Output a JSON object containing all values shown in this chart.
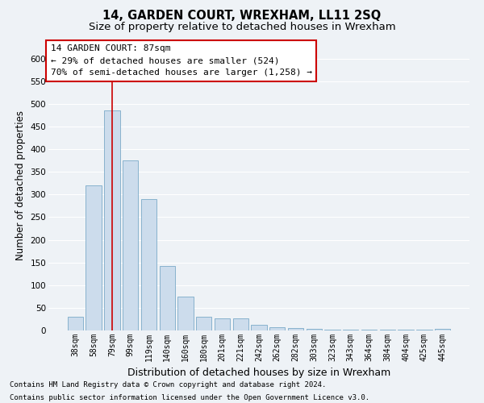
{
  "title": "14, GARDEN COURT, WREXHAM, LL11 2SQ",
  "subtitle": "Size of property relative to detached houses in Wrexham",
  "xlabel": "Distribution of detached houses by size in Wrexham",
  "ylabel": "Number of detached properties",
  "categories": [
    "38sqm",
    "58sqm",
    "79sqm",
    "99sqm",
    "119sqm",
    "140sqm",
    "160sqm",
    "180sqm",
    "201sqm",
    "221sqm",
    "242sqm",
    "262sqm",
    "282sqm",
    "303sqm",
    "323sqm",
    "343sqm",
    "364sqm",
    "384sqm",
    "404sqm",
    "425sqm",
    "445sqm"
  ],
  "values": [
    30,
    320,
    485,
    375,
    290,
    143,
    75,
    30,
    27,
    27,
    13,
    7,
    5,
    3,
    2,
    2,
    2,
    2,
    2,
    2,
    4
  ],
  "bar_color": "#ccdcec",
  "bar_edge_color": "#7aaac8",
  "vline_x": 2.0,
  "vline_color": "#cc0000",
  "annotation_text": "14 GARDEN COURT: 87sqm\n← 29% of detached houses are smaller (524)\n70% of semi-detached houses are larger (1,258) →",
  "annotation_box_color": "#ffffff",
  "annotation_box_edge_color": "#cc0000",
  "ylim": [
    0,
    640
  ],
  "yticks": [
    0,
    50,
    100,
    150,
    200,
    250,
    300,
    350,
    400,
    450,
    500,
    550,
    600
  ],
  "footer1": "Contains HM Land Registry data © Crown copyright and database right 2024.",
  "footer2": "Contains public sector information licensed under the Open Government Licence v3.0.",
  "background_color": "#eef2f6",
  "grid_color": "#ffffff",
  "title_fontsize": 10.5,
  "subtitle_fontsize": 9.5,
  "ylabel_fontsize": 8.5,
  "xlabel_fontsize": 9,
  "tick_fontsize": 7,
  "footer_fontsize": 6.5,
  "ann_fontsize": 8
}
